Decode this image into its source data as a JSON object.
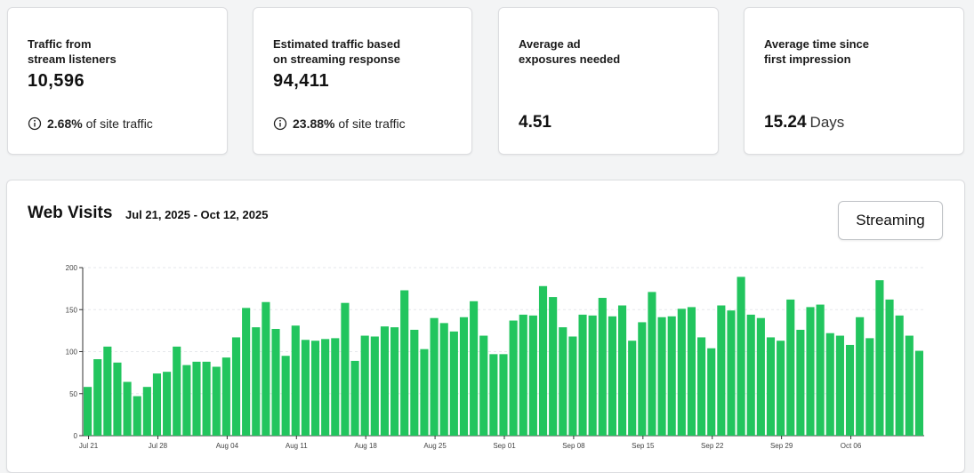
{
  "kpis": [
    {
      "label": "Traffic from\nstream listeners",
      "value": "10,596",
      "pct": "2.68%",
      "suffix": " of site traffic"
    },
    {
      "label": "Estimated traffic based\non streaming response",
      "value": "94,411",
      "pct": "23.88%",
      "suffix": " of site traffic"
    },
    {
      "label": "Average ad\nexposures needed",
      "value": "4.51"
    },
    {
      "label": "Average time since\nfirst impression",
      "value": "15.24",
      "unit": "Days"
    }
  ],
  "web_visits": {
    "title": "Web Visits",
    "date_range": "Jul 21, 2025 - Oct 12, 2025",
    "toggle_label": "Streaming"
  },
  "colors": {
    "bar": "#22c55e",
    "grid": "#e5e7eb"
  },
  "chart_data": {
    "type": "bar",
    "title": "Web Visits",
    "xlabel": "",
    "ylabel": "",
    "ylim": [
      0,
      200
    ],
    "yticks": [
      0,
      50,
      100,
      150,
      200
    ],
    "xtick_labels": [
      "Jul 21",
      "Jul 28",
      "Aug 04",
      "Aug 11",
      "Aug 18",
      "Aug 25",
      "Sep 01",
      "Sep 08",
      "Sep 15",
      "Sep 22",
      "Sep 29",
      "Oct 06"
    ],
    "values": [
      58,
      91,
      106,
      87,
      64,
      47,
      58,
      74,
      76,
      106,
      84,
      88,
      88,
      82,
      93,
      117,
      152,
      129,
      159,
      127,
      95,
      131,
      114,
      113,
      115,
      116,
      158,
      89,
      119,
      118,
      130,
      129,
      173,
      126,
      103,
      140,
      134,
      124,
      141,
      160,
      119,
      97,
      97,
      137,
      144,
      143,
      178,
      165,
      129,
      118,
      144,
      143,
      164,
      142,
      155,
      113,
      135,
      171,
      141,
      142,
      151,
      153,
      117,
      104,
      155,
      149,
      189,
      144,
      140,
      117,
      113,
      162,
      126,
      153,
      156,
      122,
      119,
      108,
      141,
      116,
      185,
      162,
      143,
      119,
      101
    ]
  }
}
